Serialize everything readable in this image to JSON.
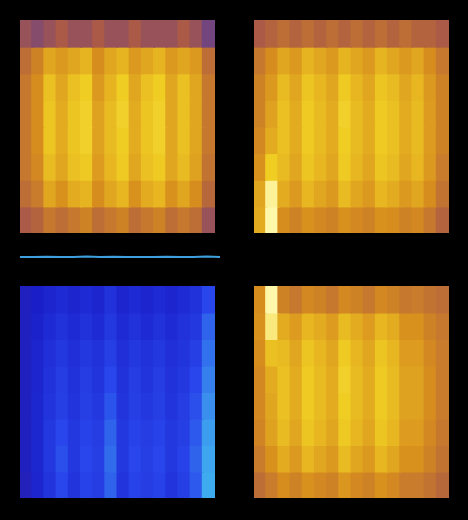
{
  "chart_data": [
    {
      "type": "heatmap",
      "color": "yellow",
      "zlim": [
        0,
        1
      ],
      "tick_labels": false,
      "grid": false,
      "cells": [
        [
          0.3,
          0.25,
          0.3,
          0.35,
          0.3,
          0.3,
          0.35,
          0.3,
          0.3,
          0.35,
          0.3,
          0.3,
          0.3,
          0.35,
          0.3,
          0.2
        ],
        [
          0.45,
          0.55,
          0.7,
          0.65,
          0.7,
          0.75,
          0.6,
          0.7,
          0.75,
          0.65,
          0.7,
          0.75,
          0.65,
          0.7,
          0.65,
          0.45
        ],
        [
          0.5,
          0.6,
          0.8,
          0.7,
          0.8,
          0.85,
          0.65,
          0.75,
          0.85,
          0.7,
          0.8,
          0.85,
          0.7,
          0.8,
          0.7,
          0.5
        ],
        [
          0.5,
          0.6,
          0.82,
          0.72,
          0.82,
          0.86,
          0.68,
          0.78,
          0.86,
          0.72,
          0.82,
          0.86,
          0.7,
          0.8,
          0.7,
          0.5
        ],
        [
          0.5,
          0.6,
          0.82,
          0.72,
          0.82,
          0.86,
          0.68,
          0.78,
          0.85,
          0.72,
          0.82,
          0.86,
          0.7,
          0.8,
          0.7,
          0.5
        ],
        [
          0.5,
          0.58,
          0.78,
          0.7,
          0.8,
          0.83,
          0.66,
          0.76,
          0.84,
          0.7,
          0.8,
          0.84,
          0.7,
          0.78,
          0.68,
          0.48
        ],
        [
          0.45,
          0.52,
          0.7,
          0.62,
          0.72,
          0.75,
          0.6,
          0.7,
          0.76,
          0.62,
          0.72,
          0.76,
          0.62,
          0.7,
          0.6,
          0.42
        ],
        [
          0.35,
          0.4,
          0.5,
          0.45,
          0.5,
          0.55,
          0.45,
          0.5,
          0.55,
          0.45,
          0.5,
          0.55,
          0.45,
          0.5,
          0.45,
          0.3
        ]
      ]
    },
    {
      "type": "line",
      "color": "#3fa0e0",
      "tick_labels": false,
      "grid": false,
      "ylim": [
        0,
        1
      ],
      "values": [
        0.5,
        0.5,
        0.52,
        0.5,
        0.5,
        0.55,
        0.5,
        0.52,
        0.5,
        0.5,
        0.5,
        0.52,
        0.5,
        0.5,
        0.54,
        0.5
      ]
    },
    {
      "type": "heatmap",
      "color": "yellow",
      "zlim": [
        0,
        1
      ],
      "tick_labels": false,
      "grid": false,
      "cells": [
        [
          0.35,
          0.4,
          0.45,
          0.4,
          0.45,
          0.4,
          0.45,
          0.4,
          0.45,
          0.4,
          0.45,
          0.4,
          0.45,
          0.4,
          0.4,
          0.35
        ],
        [
          0.5,
          0.6,
          0.7,
          0.65,
          0.75,
          0.7,
          0.65,
          0.75,
          0.7,
          0.65,
          0.75,
          0.7,
          0.65,
          0.7,
          0.6,
          0.5
        ],
        [
          0.55,
          0.65,
          0.78,
          0.7,
          0.82,
          0.76,
          0.7,
          0.84,
          0.76,
          0.7,
          0.82,
          0.78,
          0.7,
          0.76,
          0.65,
          0.55
        ],
        [
          0.55,
          0.68,
          0.8,
          0.72,
          0.84,
          0.78,
          0.72,
          0.86,
          0.78,
          0.72,
          0.84,
          0.8,
          0.72,
          0.78,
          0.66,
          0.55
        ],
        [
          0.58,
          0.72,
          0.8,
          0.72,
          0.84,
          0.78,
          0.72,
          0.85,
          0.78,
          0.72,
          0.84,
          0.8,
          0.72,
          0.78,
          0.66,
          0.55
        ],
        [
          0.62,
          0.85,
          0.78,
          0.7,
          0.82,
          0.76,
          0.7,
          0.84,
          0.76,
          0.7,
          0.82,
          0.78,
          0.7,
          0.76,
          0.65,
          0.52
        ],
        [
          0.7,
          0.98,
          0.72,
          0.65,
          0.76,
          0.7,
          0.65,
          0.78,
          0.7,
          0.65,
          0.76,
          0.72,
          0.65,
          0.7,
          0.6,
          0.48
        ],
        [
          0.72,
          1.0,
          0.6,
          0.55,
          0.62,
          0.58,
          0.55,
          0.62,
          0.58,
          0.55,
          0.62,
          0.6,
          0.55,
          0.58,
          0.5,
          0.4
        ]
      ]
    },
    {
      "type": "heatmap",
      "color": "blue",
      "zlim": [
        0,
        1
      ],
      "tick_labels": false,
      "grid": false,
      "cells": [
        [
          0.2,
          0.25,
          0.3,
          0.35,
          0.3,
          0.35,
          0.3,
          0.4,
          0.3,
          0.35,
          0.3,
          0.35,
          0.3,
          0.35,
          0.4,
          0.55
        ],
        [
          0.2,
          0.28,
          0.35,
          0.4,
          0.35,
          0.4,
          0.35,
          0.45,
          0.35,
          0.4,
          0.35,
          0.4,
          0.35,
          0.4,
          0.45,
          0.65
        ],
        [
          0.2,
          0.3,
          0.38,
          0.45,
          0.38,
          0.45,
          0.4,
          0.5,
          0.38,
          0.45,
          0.4,
          0.45,
          0.38,
          0.42,
          0.5,
          0.7
        ],
        [
          0.2,
          0.3,
          0.4,
          0.48,
          0.4,
          0.48,
          0.42,
          0.55,
          0.4,
          0.48,
          0.42,
          0.48,
          0.4,
          0.45,
          0.55,
          0.75
        ],
        [
          0.2,
          0.32,
          0.42,
          0.5,
          0.42,
          0.5,
          0.45,
          0.6,
          0.42,
          0.5,
          0.45,
          0.5,
          0.42,
          0.48,
          0.58,
          0.8
        ],
        [
          0.2,
          0.32,
          0.45,
          0.55,
          0.45,
          0.52,
          0.48,
          0.65,
          0.45,
          0.52,
          0.48,
          0.52,
          0.45,
          0.5,
          0.62,
          0.85
        ],
        [
          0.2,
          0.32,
          0.45,
          0.58,
          0.45,
          0.55,
          0.5,
          0.68,
          0.45,
          0.55,
          0.5,
          0.55,
          0.45,
          0.52,
          0.65,
          0.88
        ],
        [
          0.18,
          0.3,
          0.42,
          0.55,
          0.42,
          0.52,
          0.48,
          0.65,
          0.42,
          0.52,
          0.48,
          0.52,
          0.42,
          0.5,
          0.62,
          0.9
        ]
      ]
    },
    {
      "type": "heatmap",
      "color": "yellow",
      "zlim": [
        0,
        1
      ],
      "tick_labels": false,
      "grid": false,
      "cells": [
        [
          0.6,
          1.0,
          0.55,
          0.5,
          0.58,
          0.55,
          0.5,
          0.58,
          0.55,
          0.5,
          0.58,
          0.55,
          0.5,
          0.52,
          0.48,
          0.45
        ],
        [
          0.62,
          0.95,
          0.72,
          0.66,
          0.76,
          0.72,
          0.66,
          0.78,
          0.72,
          0.66,
          0.76,
          0.72,
          0.62,
          0.62,
          0.55,
          0.5
        ],
        [
          0.6,
          0.8,
          0.78,
          0.7,
          0.82,
          0.76,
          0.7,
          0.84,
          0.76,
          0.7,
          0.82,
          0.76,
          0.66,
          0.66,
          0.58,
          0.52
        ],
        [
          0.58,
          0.72,
          0.8,
          0.72,
          0.84,
          0.78,
          0.72,
          0.86,
          0.78,
          0.72,
          0.84,
          0.78,
          0.68,
          0.68,
          0.6,
          0.52
        ],
        [
          0.58,
          0.7,
          0.8,
          0.72,
          0.84,
          0.78,
          0.72,
          0.85,
          0.78,
          0.72,
          0.84,
          0.78,
          0.68,
          0.68,
          0.6,
          0.52
        ],
        [
          0.56,
          0.68,
          0.78,
          0.7,
          0.82,
          0.76,
          0.7,
          0.83,
          0.76,
          0.7,
          0.82,
          0.76,
          0.66,
          0.66,
          0.58,
          0.5
        ],
        [
          0.52,
          0.62,
          0.72,
          0.65,
          0.76,
          0.7,
          0.65,
          0.78,
          0.7,
          0.65,
          0.76,
          0.7,
          0.62,
          0.62,
          0.55,
          0.48
        ],
        [
          0.45,
          0.52,
          0.6,
          0.55,
          0.62,
          0.58,
          0.55,
          0.64,
          0.58,
          0.55,
          0.62,
          0.58,
          0.52,
          0.52,
          0.48,
          0.42
        ]
      ]
    }
  ]
}
